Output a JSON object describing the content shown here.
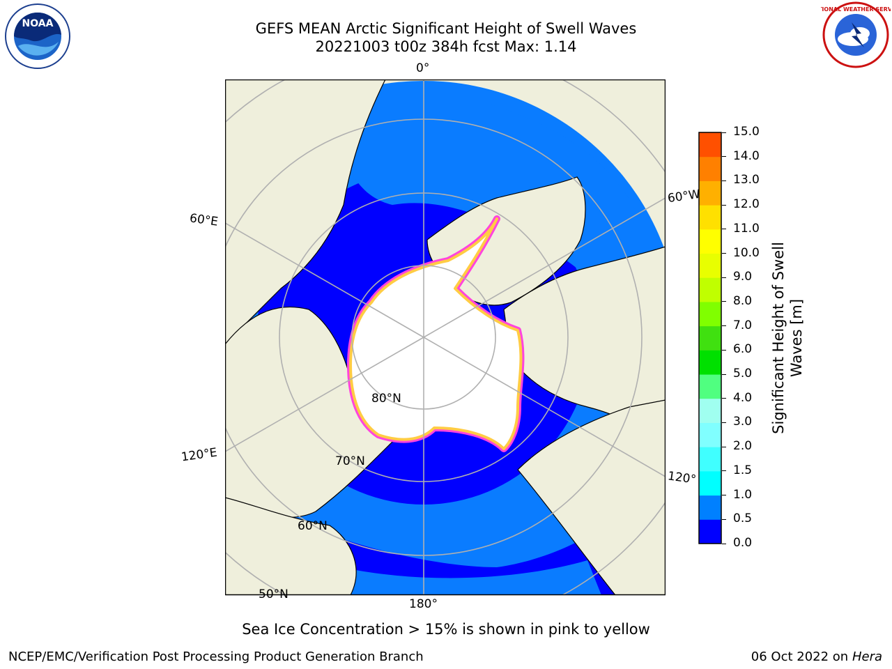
{
  "header": {
    "title_line1": "GEFS MEAN Arctic Significant Height of Swell Waves",
    "title_line2": "20221003 t00z 384h fcst   Max: 1.14"
  },
  "logos": {
    "left": "noaa-logo",
    "right": "national-weather-service-logo",
    "left_text": "NOAA",
    "right_text": "NATIONAL WEATHER SERVICE"
  },
  "map": {
    "projection": "north polar stereographic",
    "lat_labels": [
      "80°N",
      "70°N",
      "60°N",
      "50°N"
    ],
    "lon_labels": [
      "0°",
      "60°W",
      "120°",
      "180°",
      "120°E",
      "60°E"
    ],
    "colors": {
      "land": "#efefdc",
      "ocean_0_05": "#0000ff",
      "ocean_05_1": "#0080ff",
      "ice": "#ffffff",
      "ice_edge_pink": "#ff44dd",
      "ice_edge_yellow": "#ffcc44",
      "grid": "#b0b0b0"
    }
  },
  "colorbar": {
    "title": "Significant Height of Swell Waves [m]",
    "ticks": [
      "15.0",
      "14.0",
      "13.0",
      "12.0",
      "11.0",
      "10.0",
      "9.0",
      "8.0",
      "7.0",
      "6.0",
      "5.0",
      "4.0",
      "3.0",
      "2.0",
      "1.5",
      "1.0",
      "0.5",
      "0.0"
    ],
    "colors_bottom_to_top": [
      "#0000ff",
      "#0080ff",
      "#00ffff",
      "#40ffff",
      "#80ffff",
      "#a0fff0",
      "#50ff80",
      "#00e000",
      "#40e010",
      "#80ff00",
      "#c0ff00",
      "#e8ff00",
      "#ffff00",
      "#ffe000",
      "#ffb000",
      "#ff8000",
      "#ff5000",
      "#ff2000",
      "#ff0000"
    ]
  },
  "note": "Sea Ice Concentration > 15% is shown in pink to yellow",
  "footer": {
    "left": "NCEP/EMC/Verification Post Processing Product Generation Branch",
    "right_prefix": "06 Oct 2022 on ",
    "right_host": "Hera"
  }
}
